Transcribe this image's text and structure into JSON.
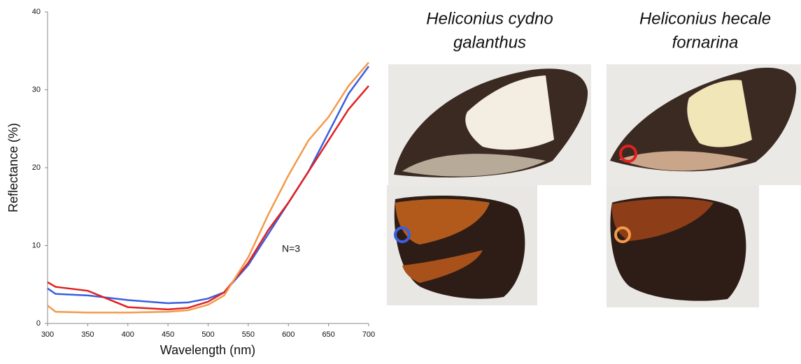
{
  "chart_data": {
    "type": "line",
    "x": [
      300,
      310,
      350,
      400,
      450,
      475,
      500,
      520,
      550,
      575,
      600,
      625,
      650,
      675,
      700
    ],
    "series": [
      {
        "color": "#3a5fe0",
        "values": [
          4.5,
          3.8,
          3.6,
          3.0,
          2.6,
          2.7,
          3.2,
          4.0,
          7.5,
          11.5,
          15.5,
          19.5,
          24.5,
          29.5,
          33
        ]
      },
      {
        "color": "#e02020",
        "values": [
          5.3,
          4.7,
          4.2,
          2.1,
          1.8,
          2.0,
          2.8,
          4.0,
          7.8,
          12,
          15.5,
          19.5,
          23.5,
          27.5,
          30.5
        ]
      },
      {
        "color": "#f39a4a",
        "values": [
          2.3,
          1.5,
          1.4,
          1.4,
          1.5,
          1.7,
          2.4,
          3.6,
          8.5,
          14,
          19,
          23.5,
          26.5,
          30.5,
          33.5
        ]
      }
    ],
    "xlim": [
      300,
      700
    ],
    "ylim": [
      0,
      40
    ],
    "xticks": [
      300,
      350,
      400,
      450,
      500,
      550,
      600,
      650,
      700
    ],
    "yticks": [
      0,
      10,
      20,
      30,
      40
    ],
    "xlabel": "Wavelength (nm)",
    "ylabel": "Reflectance (%)",
    "annotation": "N=3"
  },
  "panels": [
    {
      "title": [
        "Heliconius cydno",
        "galanthus"
      ]
    },
    {
      "title": [
        "Heliconius hecale",
        "fornarina"
      ]
    }
  ]
}
